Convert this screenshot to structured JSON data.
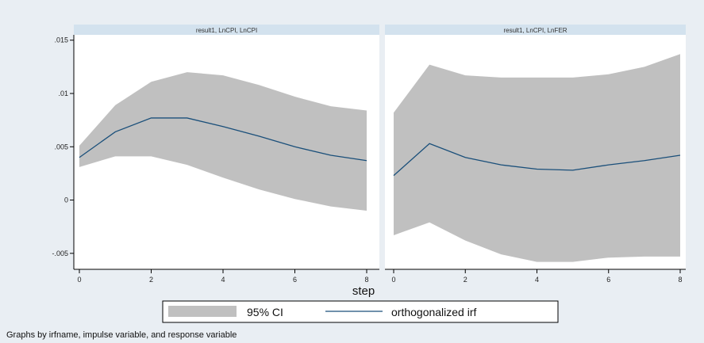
{
  "chart_data": {
    "type": "area",
    "x_title": "step",
    "note": "Graphs by irfname, impulse variable, and response variable",
    "x_ticks": [
      0,
      2,
      4,
      6,
      8
    ],
    "y_ticks": [
      -0.005,
      0,
      0.005,
      0.01,
      0.015
    ],
    "y_tick_labels": [
      "-.005",
      "0",
      ".005",
      ".01",
      ".015"
    ],
    "ylim": [
      -0.0065,
      0.0155
    ],
    "xlim": [
      0,
      8
    ],
    "grid": false,
    "legend": {
      "position": "bottom",
      "items": [
        {
          "label": "95% CI",
          "color": "#c0c0c0",
          "kind": "band"
        },
        {
          "label": "orthogonalized irf",
          "color": "#1a4f7a",
          "kind": "line"
        }
      ]
    },
    "colors": {
      "outer_background": "#e9eef3",
      "panel_header": "#d3e2ee",
      "band": "#c0c0c0",
      "line": "#1a4f7a"
    },
    "panels": [
      {
        "title": "result1, LnCPI, LnCPI",
        "x": [
          0,
          1,
          2,
          3,
          4,
          5,
          6,
          7,
          8
        ],
        "irf": [
          0.004,
          0.0064,
          0.0077,
          0.0077,
          0.0069,
          0.006,
          0.005,
          0.0042,
          0.0037
        ],
        "ci_upper": [
          0.0051,
          0.0089,
          0.0111,
          0.012,
          0.0117,
          0.0108,
          0.0097,
          0.0088,
          0.0084
        ],
        "ci_lower": [
          0.0031,
          0.0041,
          0.0041,
          0.0033,
          0.0021,
          0.001,
          0.0001,
          -0.0006,
          -0.001
        ]
      },
      {
        "title": "result1, LnCPI, LnFER",
        "x": [
          0,
          1,
          2,
          3,
          4,
          5,
          6,
          7,
          8
        ],
        "irf": [
          0.0023,
          0.0053,
          0.004,
          0.0033,
          0.0029,
          0.0028,
          0.0033,
          0.0037,
          0.0042
        ],
        "ci_upper": [
          0.0082,
          0.0127,
          0.0117,
          0.0115,
          0.0115,
          0.0115,
          0.0118,
          0.0125,
          0.0137
        ],
        "ci_lower": [
          -0.0033,
          -0.0021,
          -0.0038,
          -0.0051,
          -0.0058,
          -0.0058,
          -0.0054,
          -0.0053,
          -0.0053
        ]
      }
    ]
  }
}
